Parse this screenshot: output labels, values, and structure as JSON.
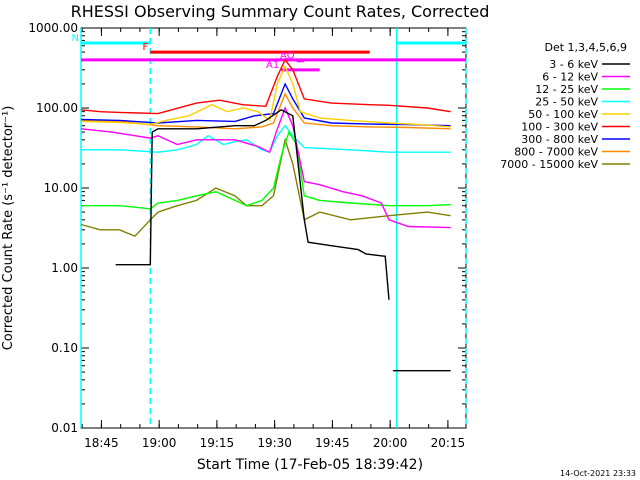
{
  "chart_data": {
    "type": "line",
    "title": "RHESSI Observing Summary Count Rates, Corrected",
    "xlabel": "Start Time (17-Feb-05 18:39:42)",
    "ylabel": "Corrected Count Rate (s⁻¹ detector⁻¹)",
    "yscale": "log",
    "ylim": [
      0.01,
      1000
    ],
    "xlim_minutes": [
      0,
      100
    ],
    "x_ticks": [
      {
        "t": 5.3,
        "label": "18:45"
      },
      {
        "t": 20.3,
        "label": "19:00"
      },
      {
        "t": 35.3,
        "label": "19:15"
      },
      {
        "t": 50.3,
        "label": "19:30"
      },
      {
        "t": 65.3,
        "label": "19:45"
      },
      {
        "t": 80.3,
        "label": "20:00"
      },
      {
        "t": 95.3,
        "label": "20:15"
      }
    ],
    "y_ticks": [
      {
        "v": 1000,
        "label": "1000.00"
      },
      {
        "v": 100,
        "label": "100.00"
      },
      {
        "v": 10,
        "label": "10.00"
      },
      {
        "v": 1,
        "label": "1.00"
      },
      {
        "v": 0.1,
        "label": "0.10"
      },
      {
        "v": 0.01,
        "label": "0.01"
      }
    ],
    "legend_title": "Det 1,3,4,5,6,9",
    "legend_position": "right",
    "series": [
      {
        "name": "3 - 6 keV",
        "color": "#000000",
        "points": [
          [
            9,
            1.1
          ],
          [
            18,
            1.1
          ],
          [
            18.5,
            50
          ],
          [
            20,
            55
          ],
          [
            30,
            55
          ],
          [
            40,
            60
          ],
          [
            45,
            60
          ],
          [
            48,
            70
          ],
          [
            52,
            95
          ],
          [
            55,
            80
          ],
          [
            58,
            4
          ],
          [
            59,
            2.1
          ],
          [
            65,
            1.9
          ],
          [
            72,
            1.7
          ],
          [
            74,
            1.5
          ],
          [
            79,
            1.4
          ],
          [
            80,
            0.4
          ],
          [
            80.5,
            null
          ],
          [
            81,
            0.052
          ],
          [
            96,
            0.052
          ]
        ]
      },
      {
        "name": "6 - 12 keV",
        "color": "#ff00ff",
        "points": [
          [
            0,
            55
          ],
          [
            8,
            50
          ],
          [
            14,
            45
          ],
          [
            18,
            42
          ],
          [
            20,
            45
          ],
          [
            25,
            35
          ],
          [
            30,
            40
          ],
          [
            40,
            40
          ],
          [
            46,
            33
          ],
          [
            49,
            28
          ],
          [
            51,
            55
          ],
          [
            53,
            100
          ],
          [
            55,
            60
          ],
          [
            58,
            12
          ],
          [
            62,
            11
          ],
          [
            68,
            9
          ],
          [
            73,
            8
          ],
          [
            78,
            6.5
          ],
          [
            80,
            4
          ],
          [
            85,
            3.3
          ],
          [
            96,
            3.2
          ]
        ]
      },
      {
        "name": "12 - 25 keV",
        "color": "#00ff00",
        "points": [
          [
            0,
            6
          ],
          [
            10,
            6
          ],
          [
            18,
            5.5
          ],
          [
            20,
            6.5
          ],
          [
            25,
            7
          ],
          [
            30,
            8
          ],
          [
            35,
            9
          ],
          [
            40,
            7
          ],
          [
            43,
            6
          ],
          [
            47,
            7
          ],
          [
            50,
            10
          ],
          [
            52,
            25
          ],
          [
            54,
            50
          ],
          [
            56,
            35
          ],
          [
            58,
            8
          ],
          [
            62,
            7
          ],
          [
            70,
            6.5
          ],
          [
            80,
            6
          ],
          [
            90,
            6
          ],
          [
            96,
            6.2
          ]
        ]
      },
      {
        "name": "25 - 50 keV",
        "color": "#00ffff",
        "points": [
          [
            0,
            30
          ],
          [
            10,
            30
          ],
          [
            20,
            28
          ],
          [
            25,
            30
          ],
          [
            30,
            35
          ],
          [
            33,
            45
          ],
          [
            37,
            35
          ],
          [
            40,
            38
          ],
          [
            43,
            40
          ],
          [
            47,
            30
          ],
          [
            49,
            28
          ],
          [
            51,
            45
          ],
          [
            53,
            60
          ],
          [
            55,
            45
          ],
          [
            58,
            32
          ],
          [
            70,
            30
          ],
          [
            80,
            28
          ],
          [
            96,
            28
          ]
        ]
      },
      {
        "name": "50 - 100 keV",
        "color": "#ffd000",
        "points": [
          [
            0,
            68
          ],
          [
            10,
            66
          ],
          [
            18,
            62
          ],
          [
            22,
            70
          ],
          [
            28,
            80
          ],
          [
            34,
            110
          ],
          [
            38,
            90
          ],
          [
            42,
            100
          ],
          [
            46,
            90
          ],
          [
            49,
            70
          ],
          [
            51,
            200
          ],
          [
            53,
            330
          ],
          [
            55,
            200
          ],
          [
            57,
            90
          ],
          [
            62,
            75
          ],
          [
            70,
            70
          ],
          [
            80,
            65
          ],
          [
            88,
            62
          ],
          [
            96,
            58
          ]
        ]
      },
      {
        "name": "100 - 300 keV",
        "color": "#ff0000",
        "points": [
          [
            0,
            95
          ],
          [
            5,
            90
          ],
          [
            10,
            88
          ],
          [
            20,
            85
          ],
          [
            30,
            115
          ],
          [
            36,
            125
          ],
          [
            42,
            110
          ],
          [
            48,
            105
          ],
          [
            51,
            250
          ],
          [
            53,
            400
          ],
          [
            55,
            300
          ],
          [
            58,
            130
          ],
          [
            65,
            115
          ],
          [
            75,
            110
          ],
          [
            80,
            108
          ],
          [
            90,
            100
          ],
          [
            96,
            90
          ]
        ]
      },
      {
        "name": "300 - 800 keV",
        "color": "#0000ff",
        "points": [
          [
            0,
            72
          ],
          [
            10,
            70
          ],
          [
            20,
            65
          ],
          [
            30,
            70
          ],
          [
            40,
            68
          ],
          [
            45,
            80
          ],
          [
            50,
            85
          ],
          [
            53,
            200
          ],
          [
            55,
            130
          ],
          [
            58,
            75
          ],
          [
            65,
            65
          ],
          [
            75,
            63
          ],
          [
            85,
            62
          ],
          [
            96,
            60
          ]
        ]
      },
      {
        "name": "800 - 7000 keV",
        "color": "#ff8c00",
        "points": [
          [
            0,
            70
          ],
          [
            10,
            68
          ],
          [
            20,
            60
          ],
          [
            30,
            58
          ],
          [
            40,
            55
          ],
          [
            47,
            58
          ],
          [
            50,
            65
          ],
          [
            53,
            150
          ],
          [
            55,
            100
          ],
          [
            58,
            65
          ],
          [
            65,
            60
          ],
          [
            75,
            58
          ],
          [
            85,
            57
          ],
          [
            96,
            55
          ]
        ]
      },
      {
        "name": "7000 - 15000 keV",
        "color": "#808000",
        "points": [
          [
            0,
            3.5
          ],
          [
            5,
            3
          ],
          [
            10,
            3
          ],
          [
            14,
            2.5
          ],
          [
            18,
            4
          ],
          [
            20,
            5
          ],
          [
            25,
            6
          ],
          [
            30,
            7
          ],
          [
            35,
            10
          ],
          [
            40,
            8
          ],
          [
            43,
            6
          ],
          [
            47,
            6
          ],
          [
            50,
            8
          ],
          [
            53,
            40
          ],
          [
            55,
            20
          ],
          [
            58,
            4
          ],
          [
            62,
            5
          ],
          [
            70,
            4
          ],
          [
            80,
            4.5
          ],
          [
            90,
            5
          ],
          [
            96,
            4.5
          ]
        ]
      }
    ],
    "flag_bars": [
      {
        "name": "N",
        "color": "#00ffff",
        "y_level": 650,
        "segments": [
          [
            0,
            18
          ],
          [
            82,
            100
          ]
        ]
      },
      {
        "name": "F",
        "color": "#ff0000",
        "y_level": 500,
        "segments": [
          [
            18,
            75
          ]
        ]
      },
      {
        "name": "",
        "color": "#ff00ff",
        "y_level": 400,
        "segments": [
          [
            0,
            100
          ]
        ]
      },
      {
        "name": "A1",
        "color": "#ff00ff",
        "y_level": 300,
        "segments": [
          [
            52,
            62
          ]
        ]
      },
      {
        "name": "AO",
        "color": "#ff00ff",
        "y_level": 390,
        "segments": [
          [
            56,
            58
          ]
        ]
      }
    ],
    "vertical_lines": [
      {
        "t": 0,
        "color": "#00ffff",
        "style": "solid"
      },
      {
        "t": 18,
        "color": "#00ffff",
        "style": "dashed"
      },
      {
        "t": 82,
        "color": "#00ffff",
        "style": "solid"
      },
      {
        "t": 100,
        "color": "#00ffff",
        "style": "dashed"
      }
    ]
  },
  "footer_timestamp": "14-Oct-2021 23:33"
}
